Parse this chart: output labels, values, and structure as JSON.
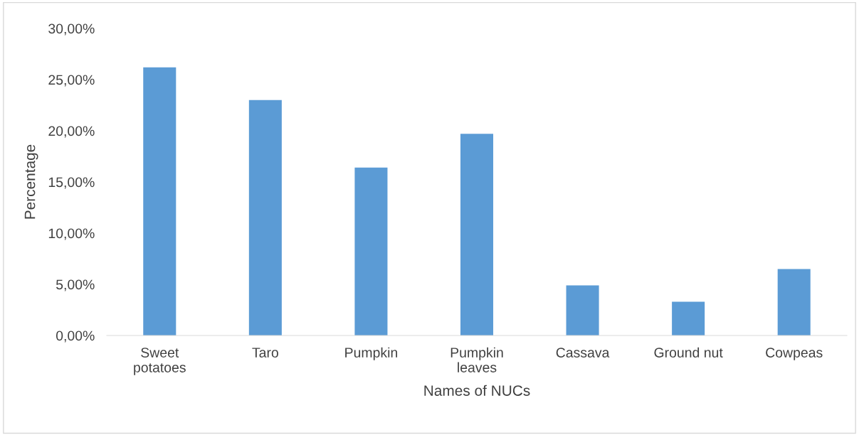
{
  "chart_data": {
    "type": "bar",
    "xlabel": "Names of NUCs",
    "ylabel": "Percentage",
    "categories": [
      "Sweet\npotatoes",
      "Taro",
      "Pumpkin",
      "Pumpkin\nleaves",
      "Cassava",
      "Ground nut",
      "Cowpeas"
    ],
    "values": [
      26.2,
      23.0,
      16.4,
      19.7,
      4.9,
      3.3,
      6.5
    ],
    "color": "#5b9bd5",
    "ylim": [
      0,
      30
    ],
    "yticks": [
      {
        "value": 0,
        "label": "0,00%"
      },
      {
        "value": 5,
        "label": "5,00%"
      },
      {
        "value": 10,
        "label": "10,00%"
      },
      {
        "value": 15,
        "label": "15,00%"
      },
      {
        "value": 20,
        "label": "20,00%"
      },
      {
        "value": 25,
        "label": "25,00%"
      },
      {
        "value": 30,
        "label": "30,00%"
      }
    ],
    "grid": false,
    "legend": false
  }
}
